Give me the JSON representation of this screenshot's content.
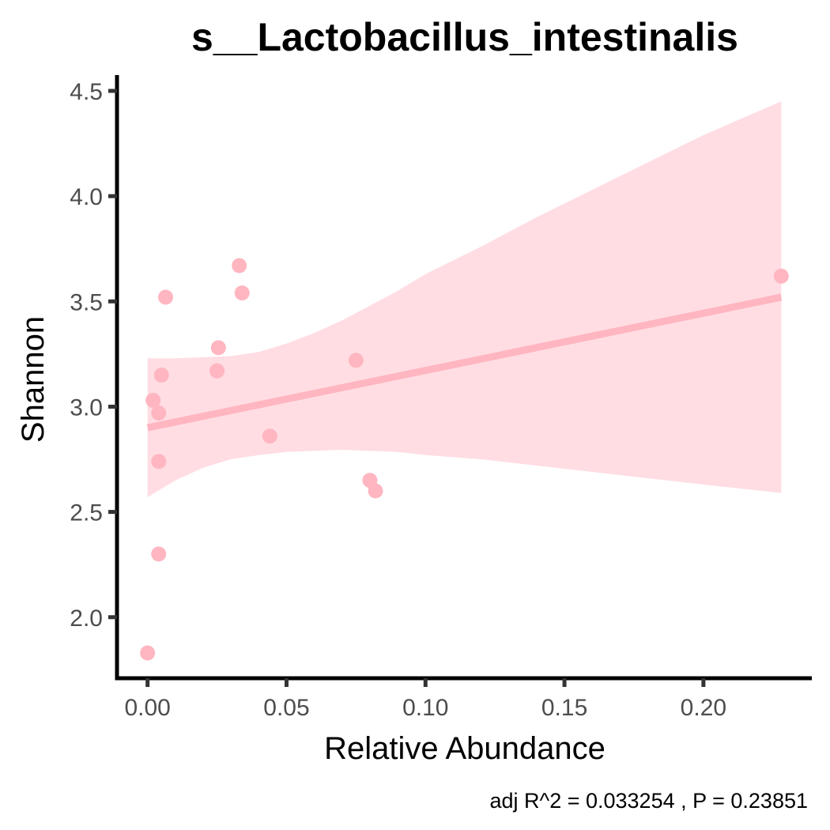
{
  "chart_data": {
    "type": "scatter",
    "title": "s__Lactobacillus_intestinalis",
    "xlabel": "Relative Abundance",
    "ylabel": "Shannon",
    "caption": "adj R^2 =  0.033254 , P = 0.23851",
    "xlim": [
      -0.011,
      0.239
    ],
    "ylim": [
      1.71,
      4.575
    ],
    "x_ticks": [
      {
        "value": 0.0,
        "label": "0.00"
      },
      {
        "value": 0.05,
        "label": "0.05"
      },
      {
        "value": 0.1,
        "label": "0.10"
      },
      {
        "value": 0.15,
        "label": "0.15"
      },
      {
        "value": 0.2,
        "label": "0.20"
      }
    ],
    "y_ticks": [
      {
        "value": 2.0,
        "label": "2.0"
      },
      {
        "value": 2.5,
        "label": "2.5"
      },
      {
        "value": 3.0,
        "label": "3.0"
      },
      {
        "value": 3.5,
        "label": "3.5"
      },
      {
        "value": 4.0,
        "label": "4.0"
      },
      {
        "value": 4.5,
        "label": "4.5"
      }
    ],
    "points": [
      {
        "x": 0.0,
        "y": 1.83
      },
      {
        "x": 0.002,
        "y": 3.03
      },
      {
        "x": 0.004,
        "y": 2.97
      },
      {
        "x": 0.004,
        "y": 2.74
      },
      {
        "x": 0.004,
        "y": 2.3
      },
      {
        "x": 0.005,
        "y": 3.15
      },
      {
        "x": 0.0065,
        "y": 3.52
      },
      {
        "x": 0.025,
        "y": 3.17
      },
      {
        "x": 0.0255,
        "y": 3.28
      },
      {
        "x": 0.033,
        "y": 3.67
      },
      {
        "x": 0.034,
        "y": 3.54
      },
      {
        "x": 0.044,
        "y": 2.86
      },
      {
        "x": 0.075,
        "y": 3.22
      },
      {
        "x": 0.08,
        "y": 2.65
      },
      {
        "x": 0.082,
        "y": 2.6
      },
      {
        "x": 0.228,
        "y": 3.62
      }
    ],
    "fit_line": {
      "x0": 0.0,
      "y0": 2.9,
      "x1": 0.228,
      "y1": 3.52
    },
    "confidence_band": {
      "x": [
        0.0,
        0.01,
        0.02,
        0.03,
        0.04,
        0.05,
        0.06,
        0.07,
        0.08,
        0.09,
        0.1,
        0.12,
        0.14,
        0.16,
        0.18,
        0.2,
        0.228
      ],
      "upper": [
        3.23,
        3.23,
        3.235,
        3.24,
        3.26,
        3.3,
        3.35,
        3.41,
        3.48,
        3.55,
        3.63,
        3.76,
        3.9,
        4.03,
        4.16,
        4.29,
        4.45
      ],
      "lower": [
        2.57,
        2.65,
        2.71,
        2.75,
        2.77,
        2.785,
        2.79,
        2.795,
        2.79,
        2.785,
        2.77,
        2.75,
        2.72,
        2.69,
        2.66,
        2.63,
        2.59
      ]
    },
    "grid": false,
    "colors": {
      "points": "#ffb6c1",
      "fit_line": "#ffb6c1",
      "band": "#ffdde3",
      "axis": "#000000",
      "tick_text": "#4d4d4d"
    }
  }
}
